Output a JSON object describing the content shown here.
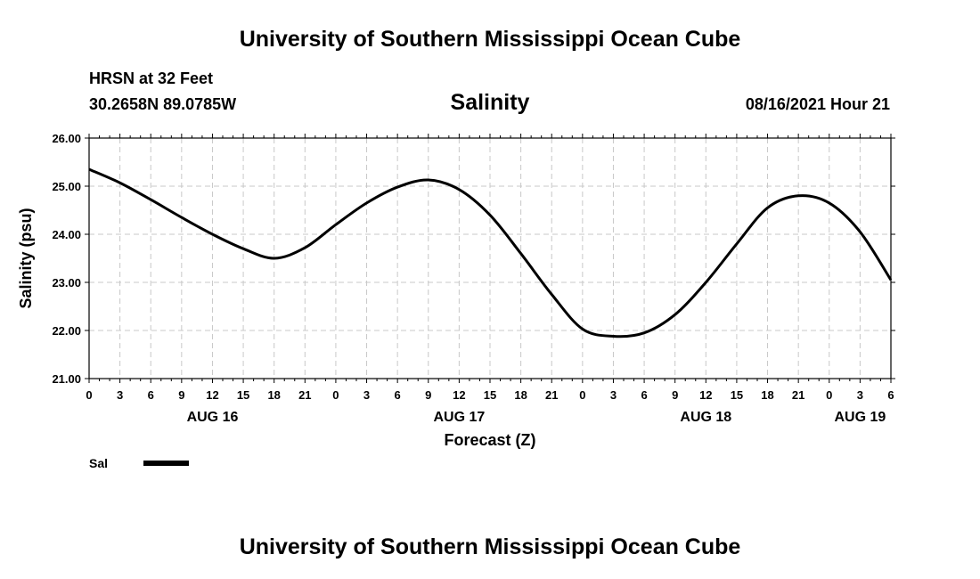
{
  "header": {
    "title": "University of Southern Mississippi Ocean Cube",
    "station": "HRSN at 32 Feet",
    "coordinates": "30.2658N  89.0785W",
    "datetime": "08/16/2021 Hour 21"
  },
  "footer": {
    "title": "University of Southern Mississippi Ocean Cube"
  },
  "chart_data": {
    "type": "line",
    "title": "Salinity",
    "xlabel": "Forecast (Z)",
    "ylabel": "Salinity (psu)",
    "ylim": [
      21.0,
      26.0
    ],
    "y_ticks": [
      "21.00",
      "22.00",
      "23.00",
      "24.00",
      "25.00",
      "26.00"
    ],
    "xlim_hours": [
      0,
      78
    ],
    "x_tick_labels": [
      "0",
      "3",
      "6",
      "9",
      "12",
      "15",
      "18",
      "21",
      "0",
      "3",
      "6",
      "9",
      "12",
      "15",
      "18",
      "21",
      "0",
      "3",
      "6",
      "9",
      "12",
      "15",
      "18",
      "21",
      "0",
      "3",
      "6"
    ],
    "day_labels": [
      {
        "label": "AUG 16",
        "hour": 12
      },
      {
        "label": "AUG 17",
        "hour": 36
      },
      {
        "label": "AUG 18",
        "hour": 60
      },
      {
        "label": "AUG 19",
        "hour": 75
      }
    ],
    "grid": true,
    "legend_position": "bottom-left",
    "series": [
      {
        "name": "Sal",
        "color": "#000000",
        "x": [
          0,
          3,
          6,
          9,
          12,
          15,
          18,
          21,
          24,
          27,
          30,
          33,
          36,
          39,
          42,
          45,
          48,
          51,
          54,
          57,
          60,
          63,
          66,
          69,
          72,
          75,
          78
        ],
        "values": [
          25.35,
          25.07,
          24.72,
          24.35,
          24.0,
          23.7,
          23.5,
          23.72,
          24.2,
          24.65,
          24.98,
          25.13,
          24.93,
          24.4,
          23.6,
          22.75,
          22.03,
          21.88,
          21.95,
          22.33,
          23.0,
          23.8,
          24.55,
          24.8,
          24.65,
          24.05,
          23.05
        ]
      }
    ]
  }
}
